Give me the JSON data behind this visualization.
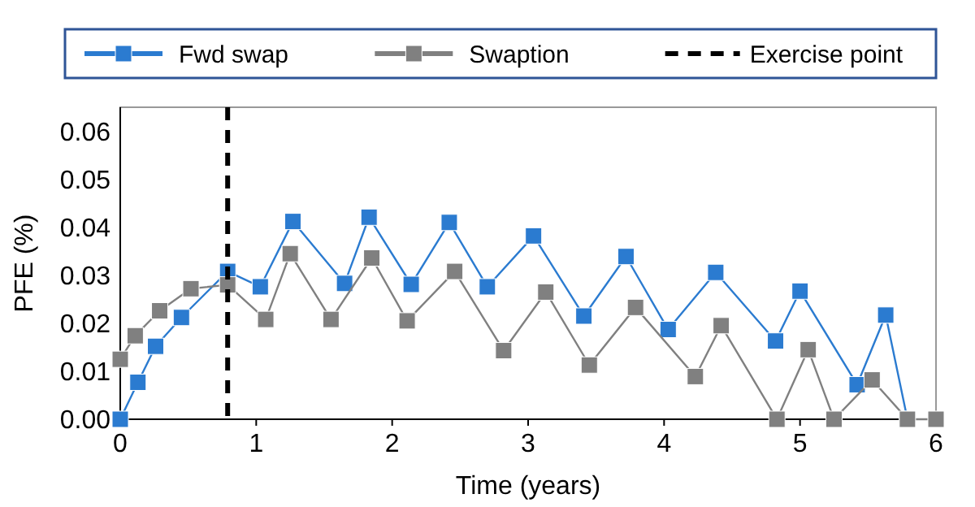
{
  "chart_data": {
    "type": "line",
    "xlabel": "Time (years)",
    "ylabel": "PFE (%)",
    "xlim": [
      0,
      6
    ],
    "xticks": [
      0,
      1,
      2,
      3,
      4,
      5,
      6
    ],
    "ylim": [
      0,
      0.065
    ],
    "yticks": [
      {
        "value": 0,
        "label": "0.00"
      },
      {
        "value": 0.01,
        "label": "0.01"
      },
      {
        "value": 0.02,
        "label": "0.02"
      },
      {
        "value": 0.03,
        "label": "0.03"
      },
      {
        "value": 0.04,
        "label": "0.04"
      },
      {
        "value": 0.05,
        "label": "0.05"
      },
      {
        "value": 0.06,
        "label": "0.06"
      }
    ],
    "grid": false,
    "legend": "top",
    "marker": "square",
    "line_style": "solid",
    "series": [
      {
        "name": "Fwd swap",
        "color": "#2b7bd0",
        "x": [
          0,
          0.13,
          0.26,
          0.45,
          0.79,
          1.03,
          1.27,
          1.65,
          1.83,
          2.14,
          2.42,
          2.7,
          3.04,
          3.41,
          3.72,
          4.03,
          4.38,
          4.82,
          5.0,
          5.42,
          5.63,
          5.79
        ],
        "values": [
          0,
          0.0077,
          0.0152,
          0.0212,
          0.0308,
          0.0276,
          0.0412,
          0.0283,
          0.0421,
          0.0281,
          0.041,
          0.0276,
          0.0382,
          0.0215,
          0.0339,
          0.0187,
          0.0306,
          0.0163,
          0.0267,
          0.0072,
          0.0217,
          0
        ]
      },
      {
        "name": "Swaption",
        "color": "#808080",
        "x": [
          0,
          0.11,
          0.29,
          0.52,
          0.79,
          1.07,
          1.25,
          1.55,
          1.85,
          2.11,
          2.46,
          2.82,
          3.13,
          3.45,
          3.79,
          4.23,
          4.42,
          4.83,
          5.06,
          5.25,
          5.53,
          5.79,
          6.0
        ],
        "values": [
          0.0125,
          0.0174,
          0.0226,
          0.0272,
          0.028,
          0.0208,
          0.0345,
          0.0208,
          0.0336,
          0.0205,
          0.0308,
          0.0143,
          0.0265,
          0.0113,
          0.0233,
          0.0089,
          0.0195,
          0,
          0.0145,
          0,
          0.0082,
          0,
          0
        ]
      }
    ],
    "ref_lines": [
      {
        "axis": "x",
        "value": 0.79,
        "label": "Exercise point",
        "color": "#000000",
        "line_style": "dashed"
      }
    ]
  }
}
